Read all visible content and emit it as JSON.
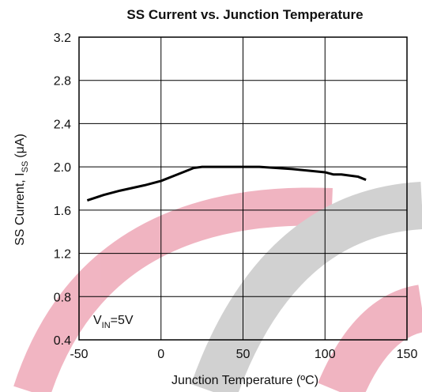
{
  "chart_data": {
    "type": "line",
    "title": "SS Current vs. Junction Temperature",
    "x_label": "Junction Temperature (ºC)",
    "y_label": {
      "text": "SS Current, I",
      "subscript": "SS",
      "unit": "(μA)"
    },
    "annotation": {
      "text": "V",
      "subscript": "IN",
      "suffix": "=5V"
    },
    "x": [
      -45,
      -35,
      -25,
      -10,
      0,
      10,
      20,
      25,
      40,
      60,
      80,
      100,
      105,
      110,
      120,
      125
    ],
    "values": [
      1.69,
      1.74,
      1.78,
      1.83,
      1.87,
      1.93,
      1.99,
      2.0,
      2.0,
      2.0,
      1.98,
      1.95,
      1.93,
      1.93,
      1.91,
      1.88
    ],
    "color": "#000000",
    "xlim": [
      -50,
      150
    ],
    "xticks": [
      -50,
      0,
      50,
      100,
      150
    ],
    "ylim": [
      0.4,
      3.2
    ],
    "yticks": [
      0.4,
      0.8,
      1.2,
      1.6,
      {
        "value": 2,
        "label": "2.0"
      },
      2.4,
      2.8,
      3.2
    ],
    "grid": true
  }
}
